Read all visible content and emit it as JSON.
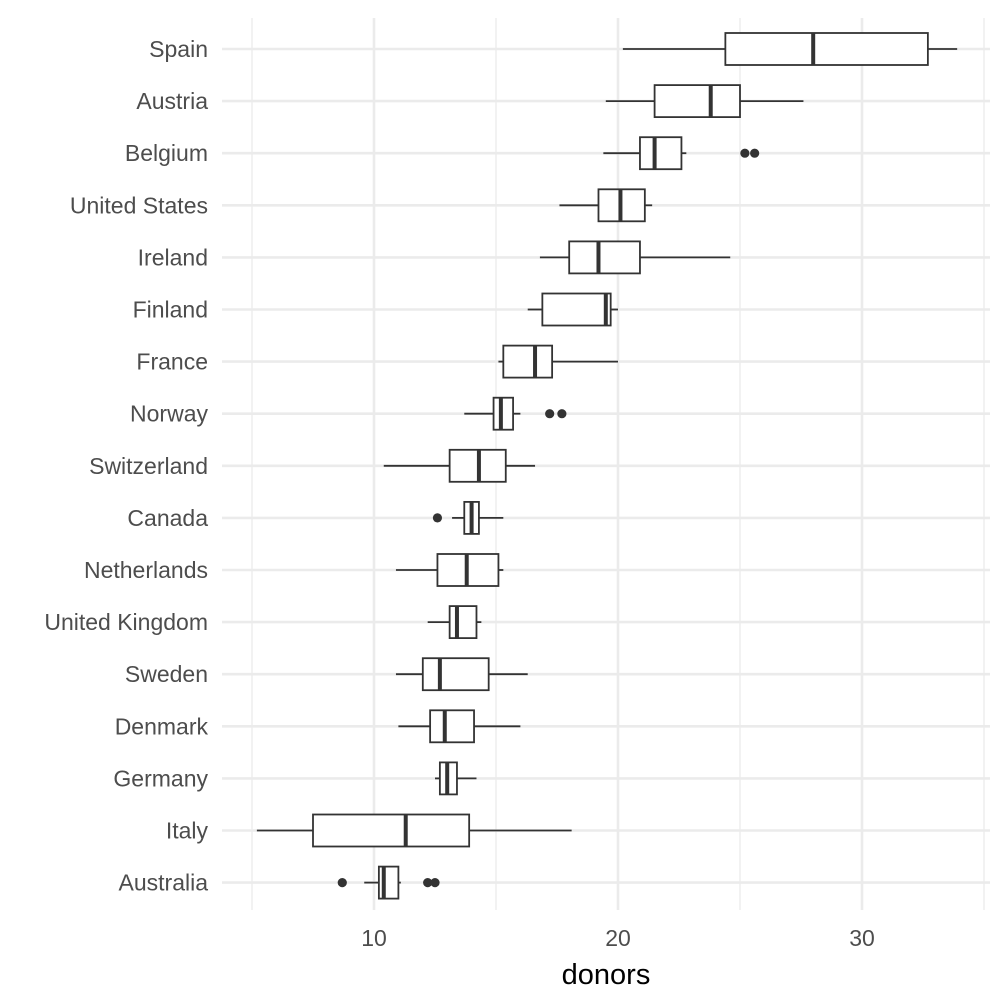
{
  "chart_data": {
    "type": "boxplot",
    "orientation": "horizontal",
    "xlabel": "donors",
    "ylabel": "",
    "xlim": [
      4.4,
      35.3
    ],
    "x_ticks": [
      10,
      20,
      30
    ],
    "grid": true,
    "legend": "none",
    "colors": {
      "box_fill": "#ffffff",
      "box_stroke": "#333333",
      "grid": "#ebebeb",
      "tick_text": "#4d4d4d"
    },
    "categories": [
      "Spain",
      "Austria",
      "Belgium",
      "United States",
      "Ireland",
      "Finland",
      "France",
      "Norway",
      "Switzerland",
      "Canada",
      "Netherlands",
      "United Kingdom",
      "Sweden",
      "Denmark",
      "Germany",
      "Italy",
      "Australia"
    ],
    "boxes": [
      {
        "name": "Spain",
        "whisker_low": 20.2,
        "q1": 24.4,
        "median": 28.0,
        "q3": 32.7,
        "whisker_high": 33.9,
        "outliers": []
      },
      {
        "name": "Austria",
        "whisker_low": 19.5,
        "q1": 21.5,
        "median": 23.8,
        "q3": 25.0,
        "whisker_high": 27.6,
        "outliers": []
      },
      {
        "name": "Belgium",
        "whisker_low": 19.4,
        "q1": 20.9,
        "median": 21.5,
        "q3": 22.6,
        "whisker_high": 22.8,
        "outliers": [
          25.2,
          25.6
        ]
      },
      {
        "name": "United States",
        "whisker_low": 17.6,
        "q1": 19.2,
        "median": 20.1,
        "q3": 21.1,
        "whisker_high": 21.4,
        "outliers": []
      },
      {
        "name": "Ireland",
        "whisker_low": 16.8,
        "q1": 18.0,
        "median": 19.2,
        "q3": 20.9,
        "whisker_high": 24.6,
        "outliers": []
      },
      {
        "name": "Finland",
        "whisker_low": 16.3,
        "q1": 16.9,
        "median": 19.5,
        "q3": 19.7,
        "whisker_high": 20.0,
        "outliers": []
      },
      {
        "name": "France",
        "whisker_low": 15.1,
        "q1": 15.3,
        "median": 16.6,
        "q3": 17.3,
        "whisker_high": 20.0,
        "outliers": []
      },
      {
        "name": "Norway",
        "whisker_low": 13.7,
        "q1": 14.9,
        "median": 15.2,
        "q3": 15.7,
        "whisker_high": 16.0,
        "outliers": [
          17.2,
          17.7
        ]
      },
      {
        "name": "Switzerland",
        "whisker_low": 10.4,
        "q1": 13.1,
        "median": 14.3,
        "q3": 15.4,
        "whisker_high": 16.6,
        "outliers": []
      },
      {
        "name": "Canada",
        "whisker_low": 13.2,
        "q1": 13.7,
        "median": 14.0,
        "q3": 14.3,
        "whisker_high": 15.3,
        "outliers": [
          12.6
        ]
      },
      {
        "name": "Netherlands",
        "whisker_low": 10.9,
        "q1": 12.6,
        "median": 13.8,
        "q3": 15.1,
        "whisker_high": 15.3,
        "outliers": []
      },
      {
        "name": "United Kingdom",
        "whisker_low": 12.2,
        "q1": 13.1,
        "median": 13.4,
        "q3": 14.2,
        "whisker_high": 14.4,
        "outliers": []
      },
      {
        "name": "Sweden",
        "whisker_low": 10.9,
        "q1": 12.0,
        "median": 12.7,
        "q3": 14.7,
        "whisker_high": 16.3,
        "outliers": []
      },
      {
        "name": "Denmark",
        "whisker_low": 11.0,
        "q1": 12.3,
        "median": 12.9,
        "q3": 14.1,
        "whisker_high": 16.0,
        "outliers": []
      },
      {
        "name": "Germany",
        "whisker_low": 12.5,
        "q1": 12.7,
        "median": 13.0,
        "q3": 13.4,
        "whisker_high": 14.2,
        "outliers": []
      },
      {
        "name": "Italy",
        "whisker_low": 5.2,
        "q1": 7.5,
        "median": 11.3,
        "q3": 13.9,
        "whisker_high": 18.1,
        "outliers": []
      },
      {
        "name": "Australia",
        "whisker_low": 9.6,
        "q1": 10.2,
        "median": 10.4,
        "q3": 11.0,
        "whisker_high": 11.1,
        "outliers": [
          8.7,
          12.2,
          12.5
        ]
      }
    ]
  }
}
